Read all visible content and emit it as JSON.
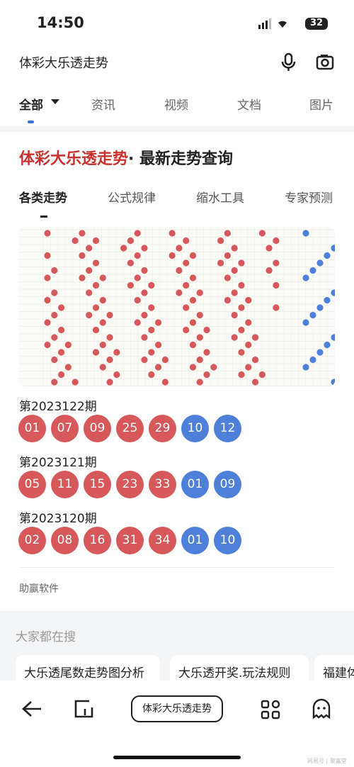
{
  "status_bar": {
    "time": "14:50",
    "battery": "32"
  },
  "search": {
    "query": "体彩大乐透走势"
  },
  "tabs": [
    "全部",
    "资讯",
    "视频",
    "文档",
    "图片"
  ],
  "result": {
    "title_highlight": "体彩大乐透走势",
    "title_rest": "· 最新走势查询",
    "subtabs": [
      "各类走势",
      "公式规律",
      "缩水工具",
      "专家预测"
    ],
    "draws": [
      {
        "issue": "第2023122期",
        "red": [
          "01",
          "07",
          "09",
          "25",
          "29"
        ],
        "blue": [
          "10",
          "12"
        ]
      },
      {
        "issue": "第2023121期",
        "red": [
          "05",
          "11",
          "15",
          "23",
          "33"
        ],
        "blue": [
          "01",
          "09"
        ]
      },
      {
        "issue": "第2023120期",
        "red": [
          "02",
          "08",
          "16",
          "31",
          "34"
        ],
        "blue": [
          "01",
          "10"
        ]
      }
    ],
    "source": "助赢软件"
  },
  "related": {
    "title": "大家都在搜",
    "items": [
      "大乐透尾数走势图分析",
      "大乐透开奖.玩法规则",
      "福建体"
    ]
  },
  "bottom_bar": {
    "center_button": "体彩大乐透走势"
  },
  "watermark": "网易号 | 聚富堂"
}
